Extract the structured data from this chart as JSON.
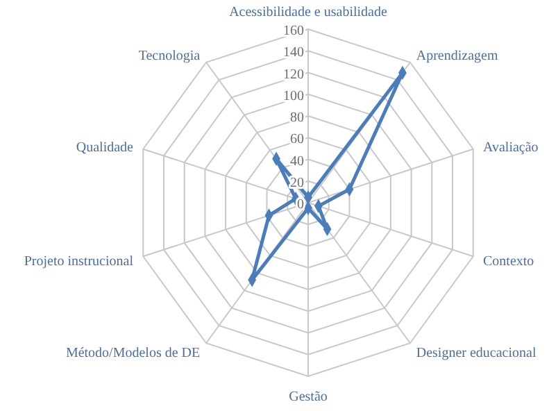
{
  "chart_data": {
    "type": "radar",
    "categories": [
      "Acessibilidade e usabilidade",
      "Aprendizagem",
      "Avaliação",
      "Contexto",
      "Designer educacional",
      "Gestão",
      "Método/Modelos de DE",
      "Projeto instrucional",
      "Qualidade",
      "Tecnologia"
    ],
    "series": [
      {
        "color": "#4a7ebb",
        "values": [
          5,
          148,
          40,
          10,
          30,
          5,
          88,
          38,
          12,
          50
        ]
      }
    ],
    "ylim": [
      0,
      160
    ],
    "yticks": [
      0,
      20,
      40,
      60,
      80,
      100,
      120,
      140,
      160
    ],
    "grid": true,
    "marker": "diamond"
  }
}
